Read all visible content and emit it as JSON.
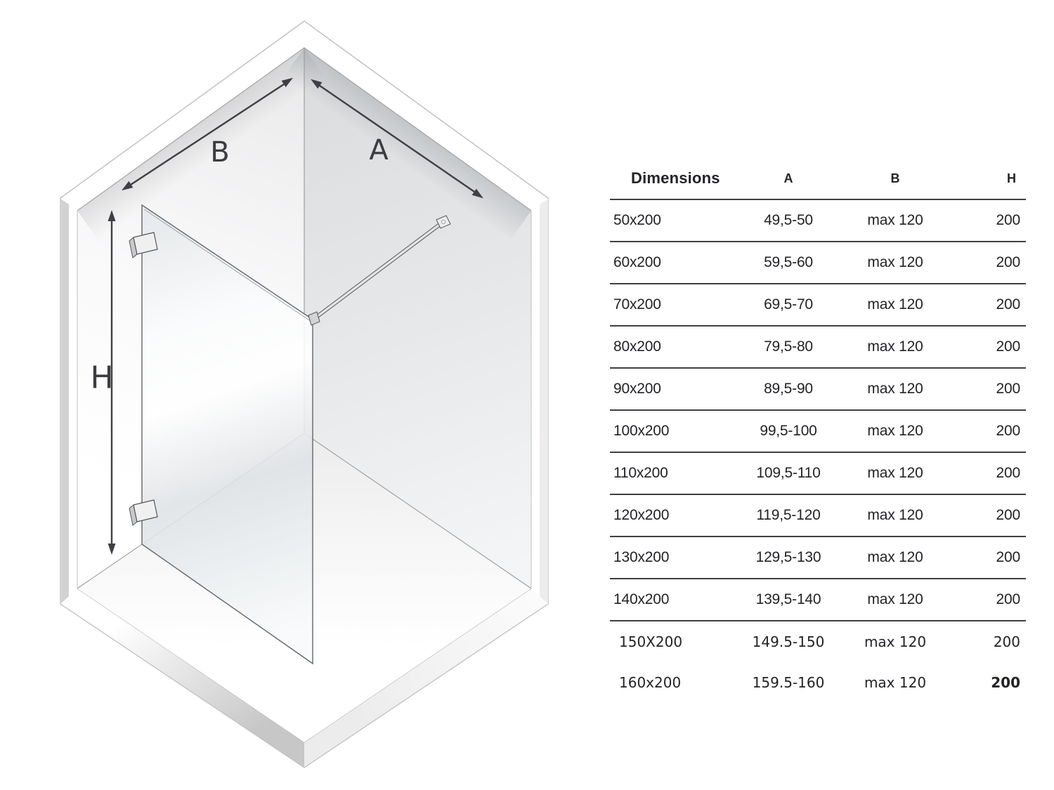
{
  "diagram": {
    "labels": {
      "a": "A",
      "b": "B",
      "h": "H"
    }
  },
  "table": {
    "headers": {
      "dimensions": "Dimensions",
      "a": "A",
      "b": "B",
      "h": "H"
    },
    "rows": [
      {
        "dim": "50x200",
        "a": "49,5-50",
        "b": "max 120",
        "h": "200",
        "variant": "standard"
      },
      {
        "dim": "60x200",
        "a": "59,5-60",
        "b": "max 120",
        "h": "200",
        "variant": "standard"
      },
      {
        "dim": "70x200",
        "a": "69,5-70",
        "b": "max 120",
        "h": "200",
        "variant": "standard"
      },
      {
        "dim": "80x200",
        "a": "79,5-80",
        "b": "max 120",
        "h": "200",
        "variant": "standard"
      },
      {
        "dim": "90x200",
        "a": "89,5-90",
        "b": "max 120",
        "h": "200",
        "variant": "standard"
      },
      {
        "dim": "100x200",
        "a": "99,5-100",
        "b": "max 120",
        "h": "200",
        "variant": "standard"
      },
      {
        "dim": "110x200",
        "a": "109,5-110",
        "b": "max 120",
        "h": "200",
        "variant": "standard"
      },
      {
        "dim": "120x200",
        "a": "119,5-120",
        "b": "max 120",
        "h": "200",
        "variant": "standard"
      },
      {
        "dim": "130x200",
        "a": "129,5-130",
        "b": "max 120",
        "h": "200",
        "variant": "standard"
      },
      {
        "dim": "140x200",
        "a": "139,5-140",
        "b": "max 120",
        "h": "200",
        "variant": "standard"
      },
      {
        "dim": "150X200",
        "a": "149.5-150",
        "b": "max 120",
        "h": "200",
        "variant": "alt"
      },
      {
        "dim": "160x200",
        "a": "159.5-160",
        "b": "max 120",
        "h": "200",
        "variant": "alt",
        "bold_h": true
      }
    ]
  }
}
